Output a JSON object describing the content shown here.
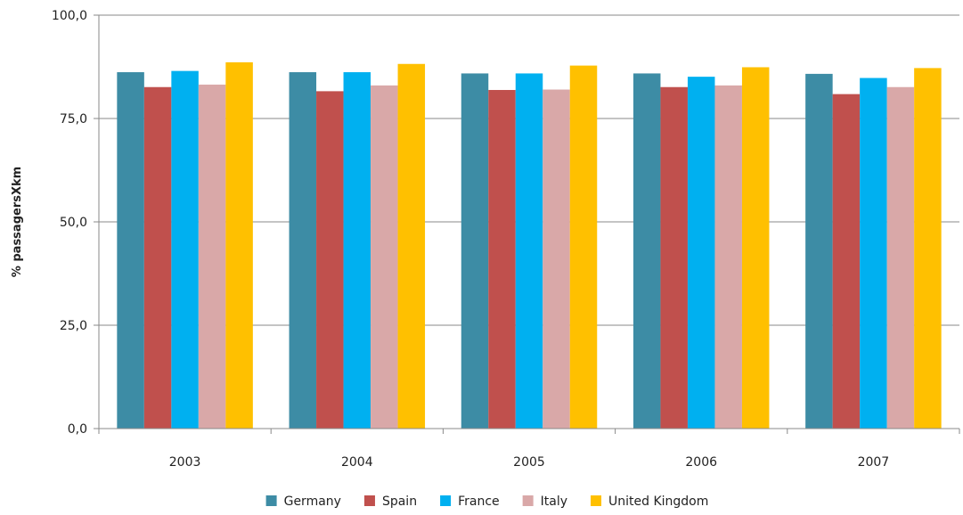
{
  "chart_data": {
    "type": "bar",
    "title": "",
    "xlabel": "",
    "ylabel": "% passagersXkm",
    "categories": [
      "2003",
      "2004",
      "2005",
      "2006",
      "2007"
    ],
    "ylim": [
      0,
      100
    ],
    "yticks": [
      0,
      25,
      50,
      75,
      100
    ],
    "ytick_labels": [
      "0,0",
      "25,0",
      "50,0",
      "75,0",
      "100,0"
    ],
    "grid": true,
    "legend": "bottom",
    "series": [
      {
        "name": "Germany",
        "color": "#3d8ca5",
        "values": [
          86.2,
          86.2,
          85.9,
          85.9,
          85.8
        ]
      },
      {
        "name": "Spain",
        "color": "#c0504d",
        "values": [
          82.6,
          81.6,
          81.9,
          82.6,
          80.9
        ]
      },
      {
        "name": "France",
        "color": "#00b0f0",
        "values": [
          86.5,
          86.2,
          85.9,
          85.1,
          84.8
        ]
      },
      {
        "name": "Italy",
        "color": "#d9a8a8",
        "values": [
          83.2,
          83.0,
          82.0,
          83.0,
          82.6
        ]
      },
      {
        "name": "United Kingdom",
        "color": "#ffc000",
        "values": [
          88.6,
          88.2,
          87.8,
          87.4,
          87.2
        ]
      }
    ]
  }
}
